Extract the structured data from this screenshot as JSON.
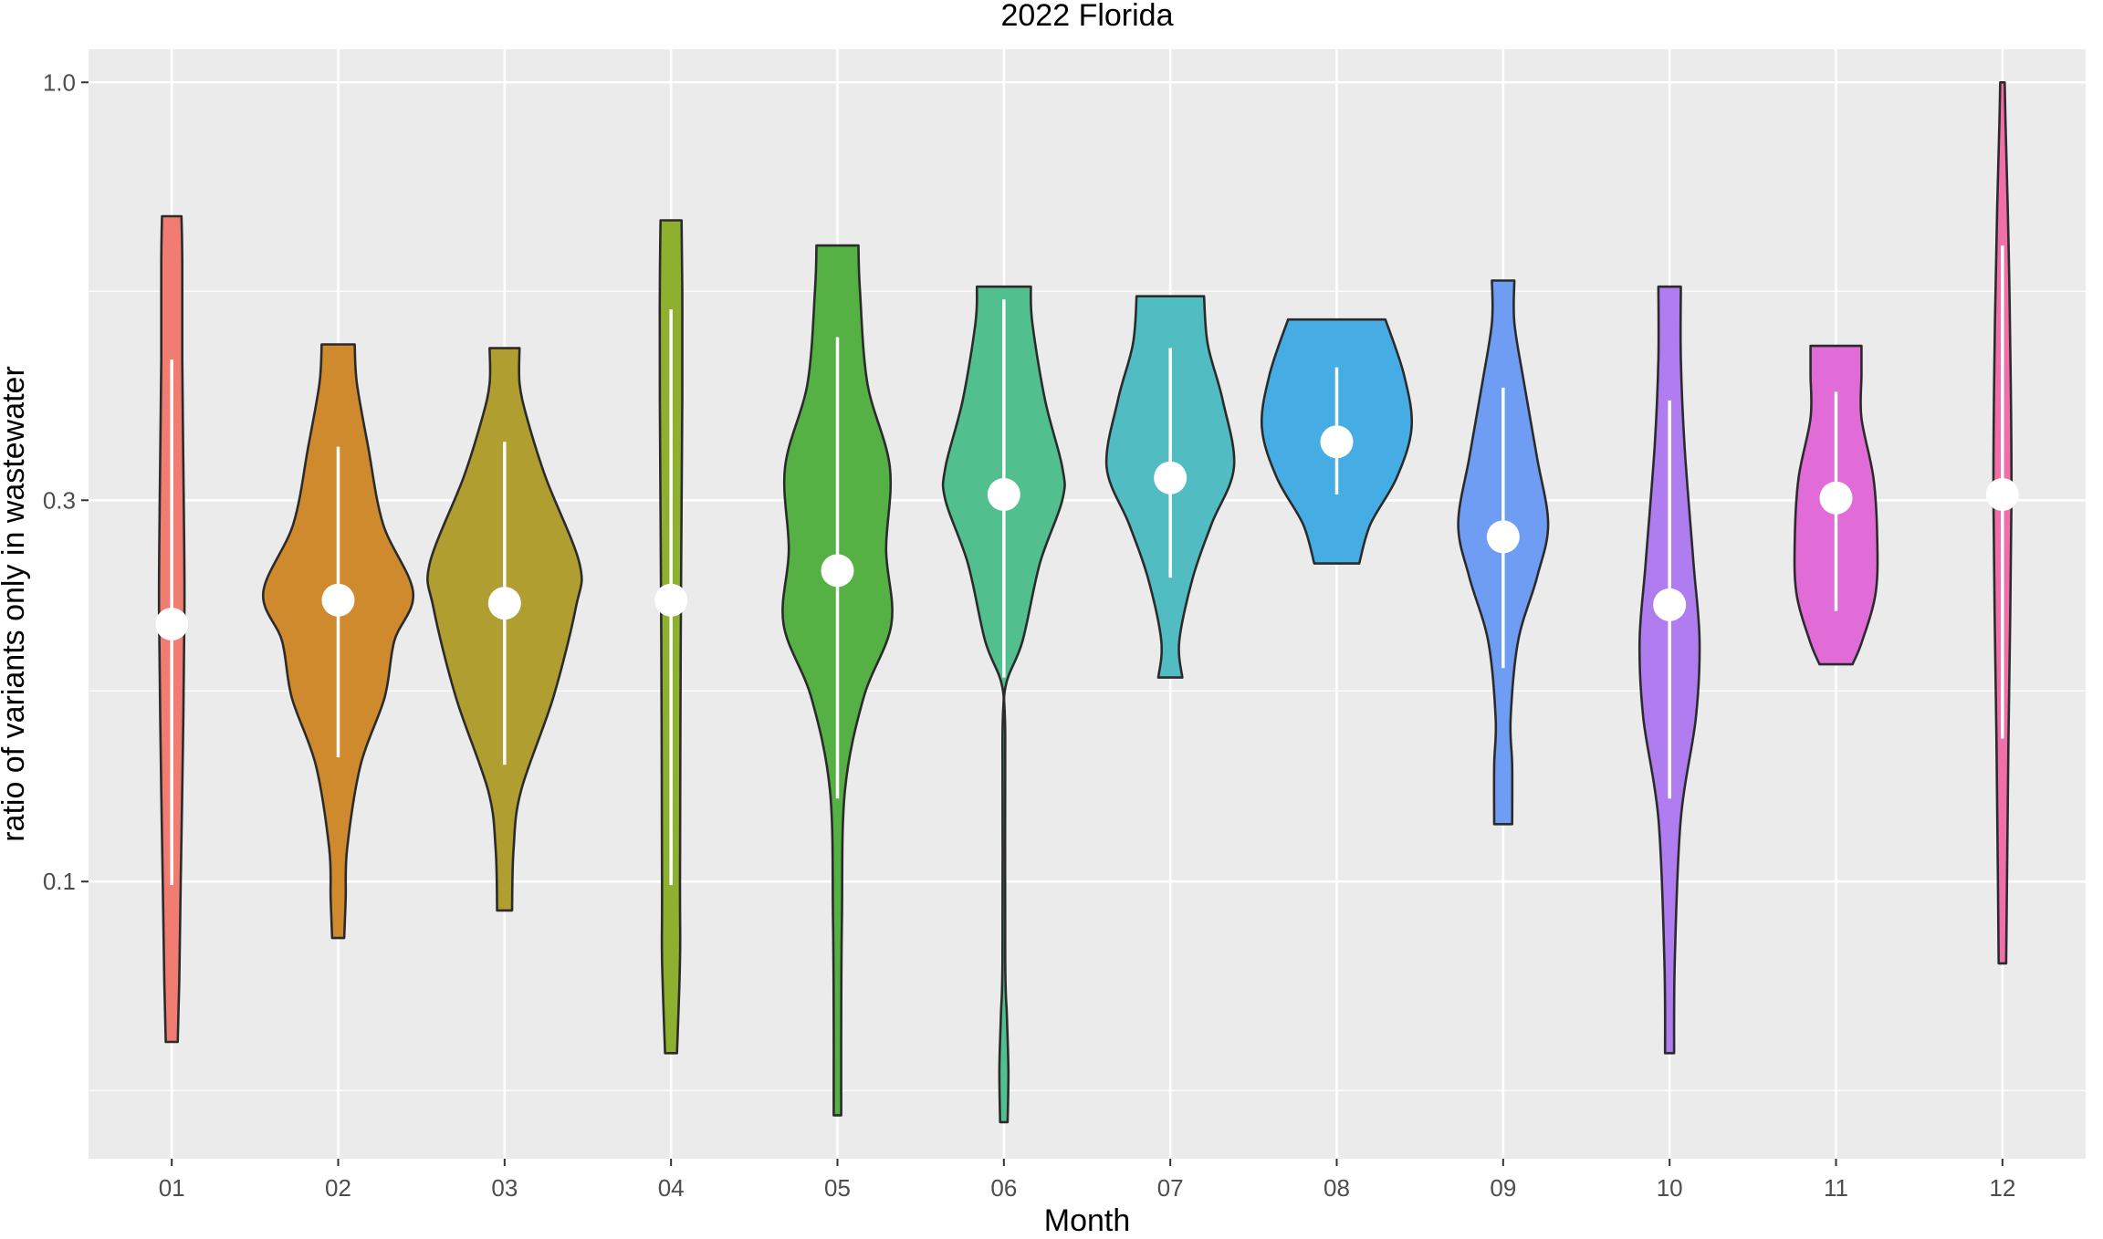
{
  "chart_data": {
    "type": "violin",
    "title": "2022 Florida",
    "xlabel": "Month",
    "ylabel": "ratio of variants only in wastewater",
    "y_scale": "log10",
    "ylim": [
      0.045,
      1.1
    ],
    "yticks": [
      0.1,
      0.3,
      1.0
    ],
    "ytick_labels": [
      "0.1",
      "0.3",
      "1.0"
    ],
    "categories": [
      "01",
      "02",
      "03",
      "04",
      "05",
      "06",
      "07",
      "08",
      "09",
      "10",
      "11",
      "12"
    ],
    "grid": true,
    "series": [
      {
        "month": "01",
        "color": "#F07C72",
        "min": 0.063,
        "max": 0.68,
        "median": 0.21,
        "box": [
          0.099,
          0.45
        ],
        "profile": [
          [
            0.063,
            0.08
          ],
          [
            0.075,
            0.1
          ],
          [
            0.1,
            0.12
          ],
          [
            0.15,
            0.15
          ],
          [
            0.22,
            0.17
          ],
          [
            0.3,
            0.16
          ],
          [
            0.45,
            0.14
          ],
          [
            0.6,
            0.14
          ],
          [
            0.68,
            0.13
          ]
        ]
      },
      {
        "month": "02",
        "color": "#D08A2E",
        "min": 0.085,
        "max": 0.47,
        "median": 0.225,
        "box": [
          0.143,
          0.35
        ],
        "profile": [
          [
            0.085,
            0.08
          ],
          [
            0.095,
            0.1
          ],
          [
            0.11,
            0.12
          ],
          [
            0.14,
            0.3
          ],
          [
            0.17,
            0.62
          ],
          [
            0.2,
            0.75
          ],
          [
            0.23,
            1.0
          ],
          [
            0.28,
            0.6
          ],
          [
            0.35,
            0.4
          ],
          [
            0.42,
            0.25
          ],
          [
            0.47,
            0.22
          ]
        ]
      },
      {
        "month": "03",
        "color": "#B09E30",
        "min": 0.092,
        "max": 0.465,
        "median": 0.223,
        "box": [
          0.14,
          0.355
        ],
        "profile": [
          [
            0.092,
            0.1
          ],
          [
            0.11,
            0.12
          ],
          [
            0.13,
            0.22
          ],
          [
            0.17,
            0.65
          ],
          [
            0.22,
            0.95
          ],
          [
            0.25,
            1.0
          ],
          [
            0.32,
            0.55
          ],
          [
            0.38,
            0.3
          ],
          [
            0.42,
            0.2
          ],
          [
            0.465,
            0.2
          ]
        ]
      },
      {
        "month": "04",
        "color": "#8DB02F",
        "min": 0.061,
        "max": 0.672,
        "median": 0.225,
        "box": [
          0.099,
          0.52
        ],
        "profile": [
          [
            0.061,
            0.08
          ],
          [
            0.08,
            0.12
          ],
          [
            0.1,
            0.12
          ],
          [
            0.2,
            0.13
          ],
          [
            0.4,
            0.15
          ],
          [
            0.55,
            0.15
          ],
          [
            0.672,
            0.14
          ]
        ]
      },
      {
        "month": "05",
        "color": "#55B143",
        "min": 0.051,
        "max": 0.625,
        "median": 0.245,
        "box": [
          0.127,
          0.48
        ],
        "profile": [
          [
            0.051,
            0.05
          ],
          [
            0.065,
            0.05
          ],
          [
            0.09,
            0.06
          ],
          [
            0.13,
            0.1
          ],
          [
            0.17,
            0.35
          ],
          [
            0.21,
            0.72
          ],
          [
            0.26,
            0.65
          ],
          [
            0.33,
            0.7
          ],
          [
            0.42,
            0.4
          ],
          [
            0.55,
            0.3
          ],
          [
            0.625,
            0.28
          ]
        ]
      },
      {
        "month": "06",
        "color": "#52BF8E",
        "min": 0.05,
        "max": 0.555,
        "median": 0.305,
        "box": [
          0.18,
          0.535
        ],
        "profile": [
          [
            0.05,
            0.05
          ],
          [
            0.058,
            0.06
          ],
          [
            0.068,
            0.04
          ],
          [
            0.08,
            0.01
          ],
          [
            0.15,
            0.01
          ],
          [
            0.175,
            0.02
          ],
          [
            0.2,
            0.25
          ],
          [
            0.25,
            0.48
          ],
          [
            0.3,
            0.78
          ],
          [
            0.33,
            0.78
          ],
          [
            0.4,
            0.55
          ],
          [
            0.5,
            0.38
          ],
          [
            0.555,
            0.36
          ]
        ]
      },
      {
        "month": "07",
        "color": "#52BCC3",
        "min": 0.18,
        "max": 0.54,
        "median": 0.32,
        "box": [
          0.24,
          0.465
        ],
        "profile": [
          [
            0.18,
            0.16
          ],
          [
            0.2,
            0.12
          ],
          [
            0.24,
            0.3
          ],
          [
            0.28,
            0.55
          ],
          [
            0.33,
            0.85
          ],
          [
            0.4,
            0.7
          ],
          [
            0.47,
            0.5
          ],
          [
            0.54,
            0.45
          ]
        ]
      },
      {
        "month": "08",
        "color": "#46ADE4",
        "min": 0.25,
        "max": 0.505,
        "median": 0.355,
        "box": [
          0.305,
          0.44
        ],
        "profile": [
          [
            0.25,
            0.3
          ],
          [
            0.28,
            0.45
          ],
          [
            0.32,
            0.8
          ],
          [
            0.37,
            1.0
          ],
          [
            0.43,
            0.9
          ],
          [
            0.505,
            0.65
          ]
        ]
      },
      {
        "month": "09",
        "color": "#6E9DF3",
        "min": 0.118,
        "max": 0.565,
        "median": 0.27,
        "box": [
          0.185,
          0.415
        ],
        "profile": [
          [
            0.118,
            0.12
          ],
          [
            0.14,
            0.12
          ],
          [
            0.16,
            0.1
          ],
          [
            0.2,
            0.2
          ],
          [
            0.24,
            0.45
          ],
          [
            0.28,
            0.6
          ],
          [
            0.34,
            0.45
          ],
          [
            0.42,
            0.28
          ],
          [
            0.5,
            0.15
          ],
          [
            0.565,
            0.15
          ]
        ]
      },
      {
        "month": "10",
        "color": "#B07DF0",
        "min": 0.061,
        "max": 0.555,
        "median": 0.222,
        "box": [
          0.127,
          0.4
        ],
        "profile": [
          [
            0.061,
            0.06
          ],
          [
            0.08,
            0.07
          ],
          [
            0.12,
            0.15
          ],
          [
            0.16,
            0.35
          ],
          [
            0.2,
            0.4
          ],
          [
            0.25,
            0.32
          ],
          [
            0.35,
            0.2
          ],
          [
            0.45,
            0.15
          ],
          [
            0.555,
            0.15
          ]
        ]
      },
      {
        "month": "11",
        "color": "#E16CD8",
        "min": 0.187,
        "max": 0.468,
        "median": 0.302,
        "box": [
          0.218,
          0.41
        ],
        "profile": [
          [
            0.187,
            0.22
          ],
          [
            0.2,
            0.35
          ],
          [
            0.23,
            0.53
          ],
          [
            0.27,
            0.55
          ],
          [
            0.32,
            0.5
          ],
          [
            0.38,
            0.34
          ],
          [
            0.43,
            0.34
          ],
          [
            0.468,
            0.34
          ]
        ]
      },
      {
        "month": "12",
        "color": "#F06FA8",
        "min": 0.079,
        "max": 1.0,
        "median": 0.305,
        "box": [
          0.151,
          0.625
        ],
        "profile": [
          [
            0.079,
            0.05
          ],
          [
            0.1,
            0.06
          ],
          [
            0.15,
            0.08
          ],
          [
            0.3,
            0.12
          ],
          [
            0.5,
            0.1
          ],
          [
            0.7,
            0.07
          ],
          [
            0.9,
            0.04
          ],
          [
            1.0,
            0.03
          ]
        ]
      }
    ]
  }
}
